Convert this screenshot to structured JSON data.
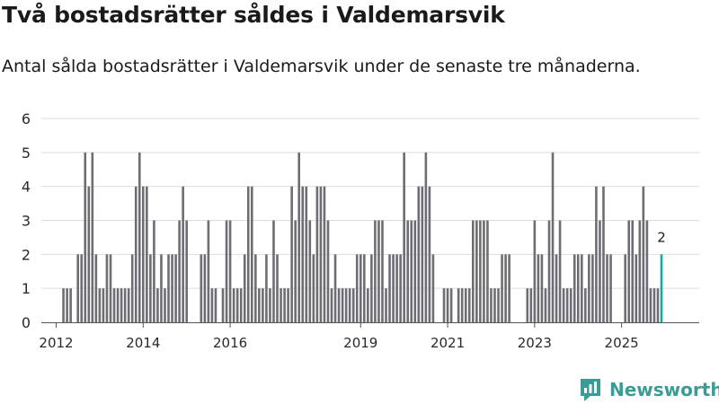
{
  "header": {
    "title": "Två bostadsrätter såldes i Valdemarsvik",
    "subtitle": "Antal sålda bostadsrätter i Valdemarsvik under de senaste tre månaderna."
  },
  "branding": {
    "logo_text": "Newsworthy",
    "icon": "newsworthy-chart-icon"
  },
  "colors": {
    "bar": "#6d6d73",
    "highlight": "#17a89a",
    "grid": "#dddddd",
    "axis": "#555555",
    "brand": "#3b9c95"
  },
  "chart_data": {
    "type": "bar",
    "title": "Två bostadsrätter såldes i Valdemarsvik",
    "xlabel": "",
    "ylabel": "",
    "ylim": [
      0,
      6
    ],
    "y_ticks": [
      0,
      1,
      2,
      3,
      4,
      5,
      6
    ],
    "x_ticks": [
      "2012",
      "2014",
      "2016",
      "2019",
      "2021",
      "2023",
      "2025"
    ],
    "grid": true,
    "start": "2012-01",
    "end": "2025-12",
    "values": [
      0,
      0,
      1,
      1,
      1,
      0,
      2,
      2,
      5,
      4,
      5,
      2,
      1,
      1,
      2,
      2,
      1,
      1,
      1,
      1,
      1,
      2,
      4,
      5,
      4,
      4,
      2,
      3,
      1,
      2,
      1,
      2,
      2,
      2,
      3,
      4,
      3,
      0,
      0,
      0,
      2,
      2,
      3,
      1,
      1,
      0,
      1,
      3,
      3,
      1,
      1,
      1,
      2,
      4,
      4,
      2,
      1,
      1,
      2,
      1,
      3,
      2,
      1,
      1,
      1,
      4,
      3,
      5,
      4,
      4,
      3,
      2,
      4,
      4,
      4,
      3,
      1,
      2,
      1,
      1,
      1,
      1,
      1,
      2,
      2,
      2,
      1,
      2,
      3,
      3,
      3,
      1,
      2,
      2,
      2,
      2,
      5,
      3,
      3,
      3,
      4,
      4,
      5,
      4,
      2,
      0,
      0,
      1,
      1,
      1,
      0,
      1,
      1,
      1,
      1,
      3,
      3,
      3,
      3,
      3,
      1,
      1,
      1,
      2,
      2,
      2,
      0,
      0,
      0,
      0,
      1,
      1,
      3,
      2,
      2,
      1,
      3,
      5,
      2,
      3,
      1,
      1,
      1,
      2,
      2,
      2,
      1,
      2,
      2,
      4,
      3,
      4,
      2,
      2,
      0,
      0,
      0,
      2,
      3,
      3,
      2,
      3,
      4,
      3,
      1,
      1,
      1,
      2
    ],
    "highlight_index": 167,
    "highlight_label": "2"
  }
}
